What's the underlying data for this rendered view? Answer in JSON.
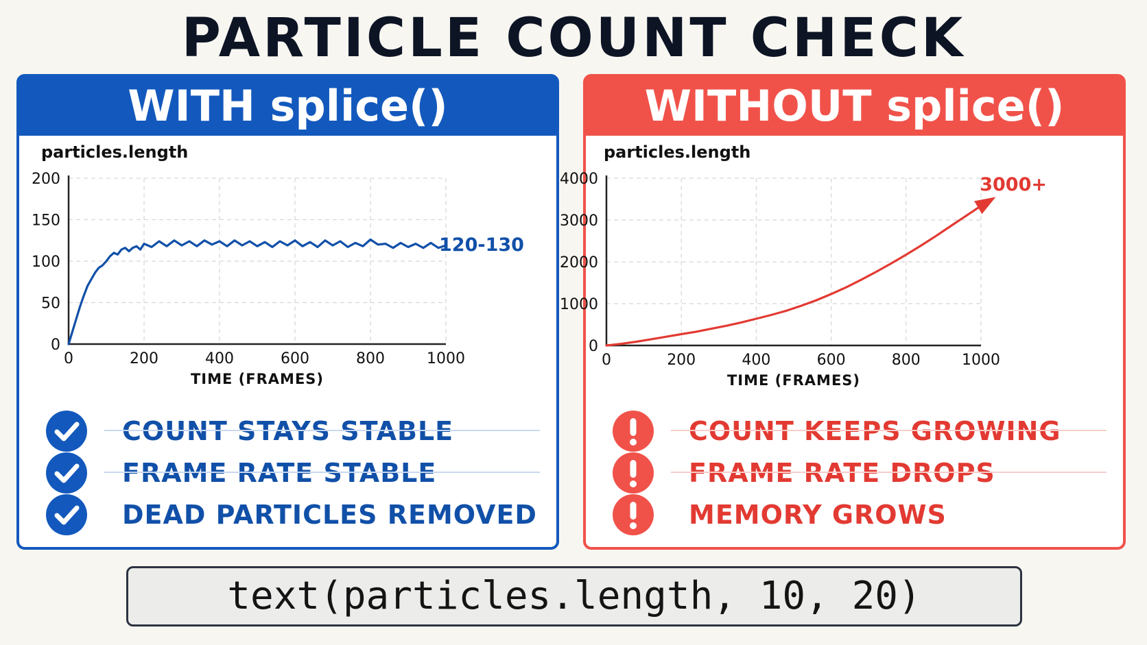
{
  "title": "PARTICLE COUNT CHECK",
  "code": "text(particles.length, 10, 20)",
  "panels": {
    "left": {
      "header": "WITH splice()",
      "items": [
        "COUNT STAYS STABLE",
        "FRAME RATE STABLE",
        "DEAD PARTICLES REMOVED"
      ],
      "icon": "check-icon",
      "accent": "#1359bd"
    },
    "right": {
      "header": "WITHOUT splice()",
      "items": [
        "COUNT KEEPS GROWING",
        "FRAME RATE DROPS",
        "MEMORY GROWS"
      ],
      "icon": "exclamation-icon",
      "accent": "#f0524a"
    }
  },
  "chart_data": [
    {
      "type": "line",
      "title": "particles.length",
      "xlabel": "TIME (FRAMES)",
      "ylabel": "",
      "xlim": [
        0,
        1000
      ],
      "ylim": [
        0,
        200
      ],
      "xticks": [
        0,
        200,
        400,
        600,
        800,
        1000
      ],
      "yticks": [
        0,
        50,
        100,
        150,
        200
      ],
      "grid": true,
      "annotation": "120-130",
      "color": "#1150a8",
      "series": [
        {
          "x": [
            0,
            10,
            20,
            30,
            40,
            50,
            60,
            70,
            80,
            90,
            100,
            110,
            120,
            130,
            140,
            150,
            160,
            170,
            180,
            190,
            200,
            220,
            240,
            260,
            280,
            300,
            320,
            340,
            360,
            380,
            400,
            420,
            440,
            460,
            480,
            500,
            520,
            540,
            560,
            580,
            600,
            620,
            640,
            660,
            680,
            700,
            720,
            740,
            760,
            780,
            800,
            820,
            840,
            860,
            880,
            900,
            920,
            940,
            960,
            980,
            1000
          ],
          "y": [
            0,
            15,
            30,
            45,
            58,
            70,
            78,
            86,
            92,
            95,
            100,
            106,
            110,
            108,
            114,
            116,
            112,
            116,
            118,
            114,
            121,
            117,
            124,
            118,
            125,
            119,
            124,
            118,
            125,
            120,
            124,
            118,
            125,
            119,
            124,
            118,
            123,
            117,
            124,
            119,
            125,
            118,
            123,
            117,
            125,
            119,
            124,
            117,
            122,
            118,
            126,
            120,
            121,
            116,
            122,
            117,
            121,
            116,
            122,
            116,
            119
          ]
        }
      ]
    },
    {
      "type": "line",
      "title": "particles.length",
      "xlabel": "TIME (FRAMES)",
      "ylabel": "",
      "xlim": [
        0,
        1000
      ],
      "ylim": [
        0,
        4000
      ],
      "xticks": [
        0,
        200,
        400,
        600,
        800,
        1000
      ],
      "yticks": [
        0,
        1000,
        2000,
        3000,
        4000
      ],
      "grid": true,
      "annotation": "3000+",
      "color": "#e23a32",
      "series": [
        {
          "x": [
            0,
            40,
            80,
            120,
            160,
            200,
            240,
            280,
            320,
            360,
            400,
            440,
            480,
            520,
            560,
            600,
            640,
            680,
            720,
            760,
            800,
            840,
            880,
            920,
            960,
            1000,
            1030
          ],
          "y": [
            0,
            40,
            90,
            150,
            210,
            270,
            330,
            400,
            470,
            550,
            640,
            730,
            830,
            950,
            1080,
            1230,
            1390,
            1570,
            1760,
            1960,
            2170,
            2390,
            2620,
            2860,
            3100,
            3340,
            3500
          ]
        }
      ]
    }
  ]
}
